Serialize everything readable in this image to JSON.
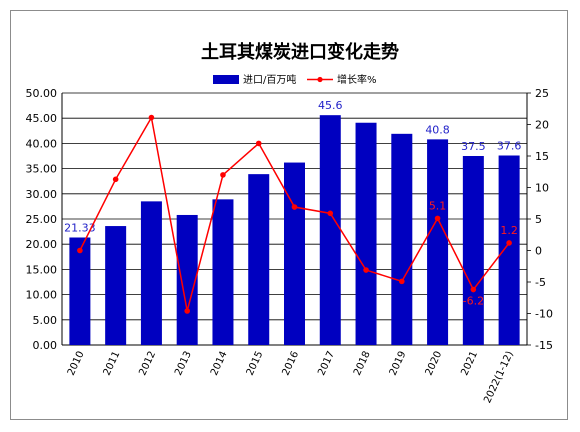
{
  "chart_data": {
    "type": "bar+line",
    "title": "土耳其煤炭进口变化走势",
    "categories": [
      "2010",
      "2011",
      "2012",
      "2013",
      "2014",
      "2015",
      "2016",
      "2017",
      "2018",
      "2019",
      "2020",
      "2021",
      "2022(1-12)"
    ],
    "series": [
      {
        "name": "进口/百万吨",
        "type": "bar",
        "axis": "left",
        "color": "#0000c0",
        "values": [
          21.33,
          23.6,
          28.5,
          25.8,
          28.9,
          33.9,
          36.2,
          45.6,
          44.1,
          41.9,
          40.8,
          37.5,
          37.6
        ],
        "data_labels": [
          "21.33",
          "",
          "",
          "",
          "",
          "",
          "",
          "45.6",
          "",
          "",
          "40.8",
          "37.5",
          "37.6"
        ]
      },
      {
        "name": "增长率%",
        "type": "line",
        "axis": "right",
        "color": "#ff0000",
        "values": [
          0,
          11.3,
          21.1,
          -9.6,
          12.0,
          17.0,
          6.9,
          5.9,
          -3.1,
          -4.9,
          5.1,
          -6.2,
          1.2
        ],
        "data_labels": [
          "",
          "",
          "",
          "",
          "",
          "",
          "",
          "",
          "",
          "",
          "5.1",
          "-6.2",
          "1.2"
        ]
      }
    ],
    "y_left": {
      "min": 0,
      "max": 50,
      "step": 5,
      "ticks": [
        "0.00",
        "5.00",
        "10.00",
        "15.00",
        "20.00",
        "25.00",
        "30.00",
        "35.00",
        "40.00",
        "45.00",
        "50.00"
      ]
    },
    "y_right": {
      "min": -15,
      "max": 25,
      "step": 5,
      "ticks": [
        "-15",
        "-10",
        "-5",
        "0",
        "5",
        "10",
        "15",
        "20",
        "25"
      ]
    },
    "grid": true,
    "legend_position": "top-center"
  }
}
